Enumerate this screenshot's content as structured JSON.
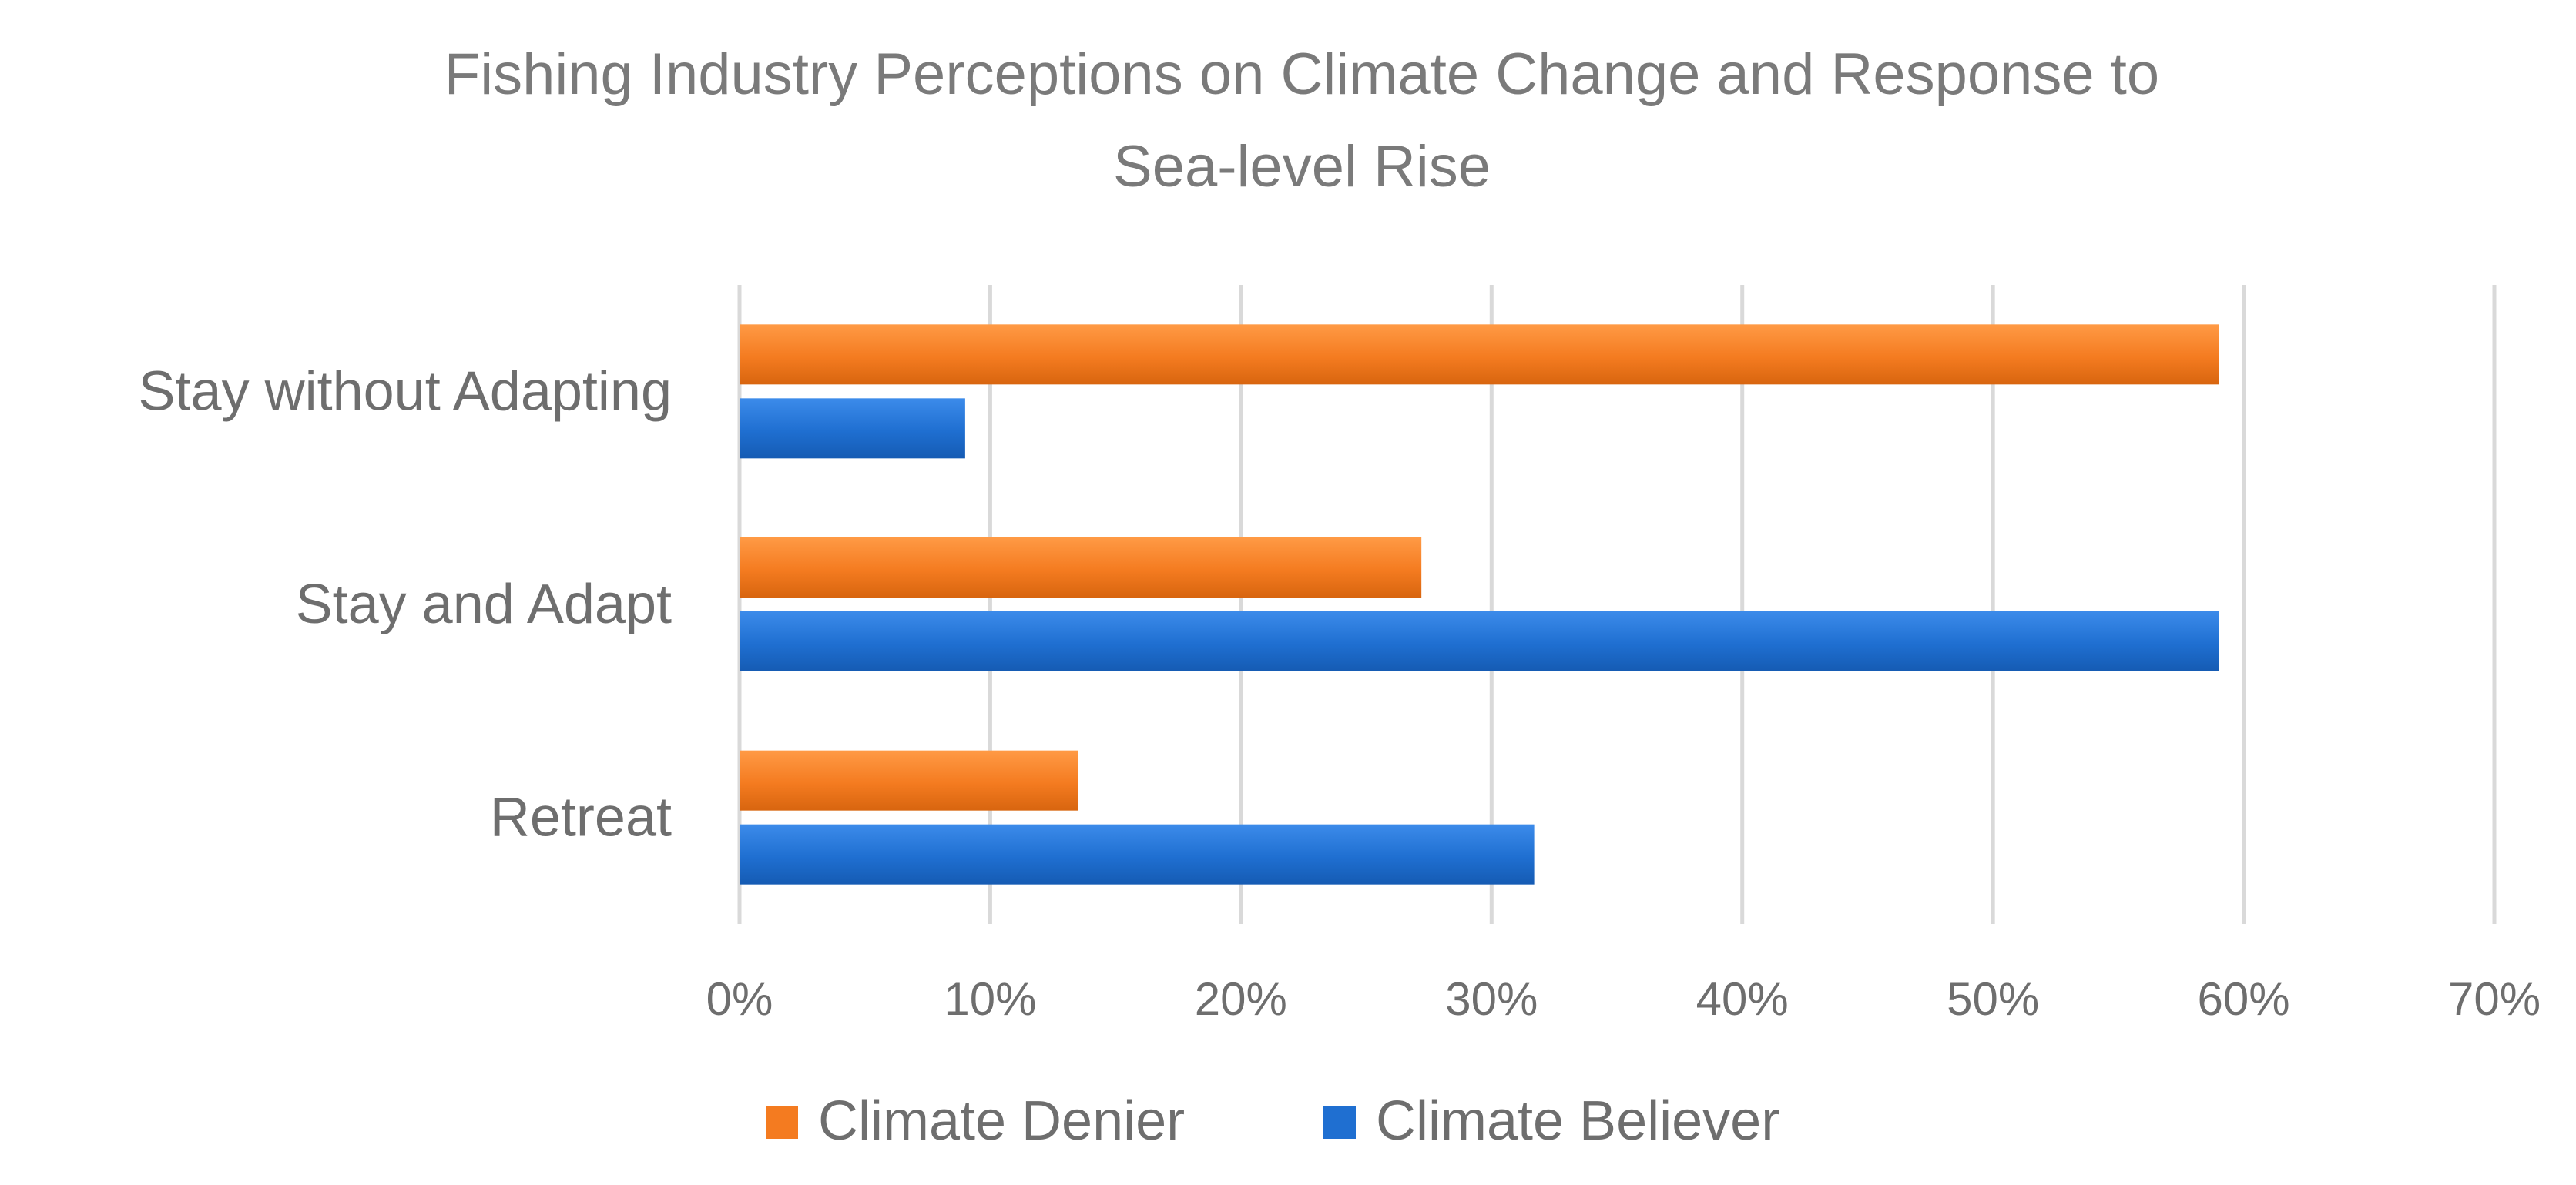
{
  "chart_data": {
    "type": "bar",
    "orientation": "horizontal",
    "title": "Fishing Industry Perceptions on Climate Change and Response to Sea-level Rise",
    "title_lines": [
      "Fishing Industry Perceptions on Climate Change and Response to",
      "Sea-level Rise"
    ],
    "categories": [
      "Stay without Adapting",
      "Stay and Adapt",
      "Retreat"
    ],
    "series": [
      {
        "name": "Climate Denier",
        "color": "#F47B20",
        "values": [
          59,
          27.2,
          13.5
        ]
      },
      {
        "name": "Climate Believer",
        "color": "#1F6FD1",
        "values": [
          9,
          59,
          31.7
        ]
      }
    ],
    "xlim": [
      0,
      70
    ],
    "xticks": [
      0,
      10,
      20,
      30,
      40,
      50,
      60,
      70
    ],
    "tick_labels": [
      "0%",
      "10%",
      "20%",
      "30%",
      "40%",
      "50%",
      "60%",
      "70%"
    ],
    "xlabel": "",
    "ylabel": "",
    "grid": true,
    "legend": {
      "position": "bottom",
      "entries": [
        "Climate Denier",
        "Climate Believer"
      ]
    }
  }
}
